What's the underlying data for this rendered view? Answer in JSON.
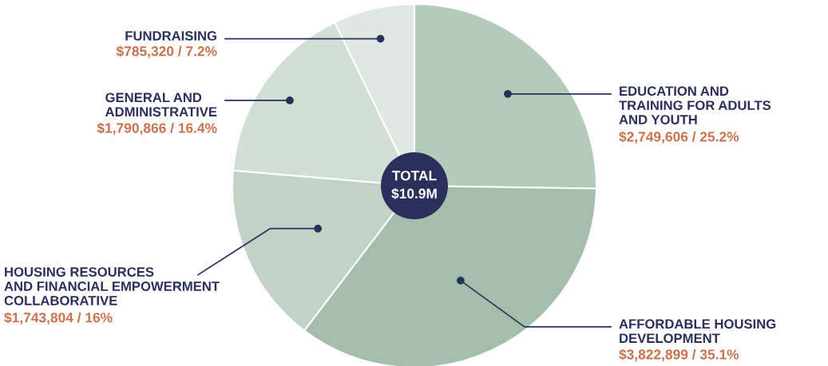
{
  "chart_data": {
    "type": "pie",
    "categories": [
      "EDUCATION AND\nTRAINING FOR ADULTS\nAND YOUTH",
      "AFFORDABLE HOUSING\nDEVELOPMENT",
      "HOUSING RESOURCES\nAND FINANCIAL EMPOWERMENT\nCOLLABORATIVE",
      "GENERAL AND\nADMINISTRATIVE",
      "FUNDRAISING"
    ],
    "values": [
      2749606,
      3822899,
      1743804,
      1790866,
      785320
    ],
    "value_labels": [
      "$2,749,606 / 25.2%",
      "$3,822,899 / 35.1%",
      "$1,743,804 / 16%",
      "$1,790,866 / 16.4%",
      "$785,320 / 7.2%"
    ],
    "colors": [
      "#b5cbb9",
      "#a3bfab",
      "#c0d3c4",
      "#d1dfd4",
      "#dfe8e1"
    ],
    "annotations": [
      "TOTAL\n$10.9M"
    ]
  }
}
